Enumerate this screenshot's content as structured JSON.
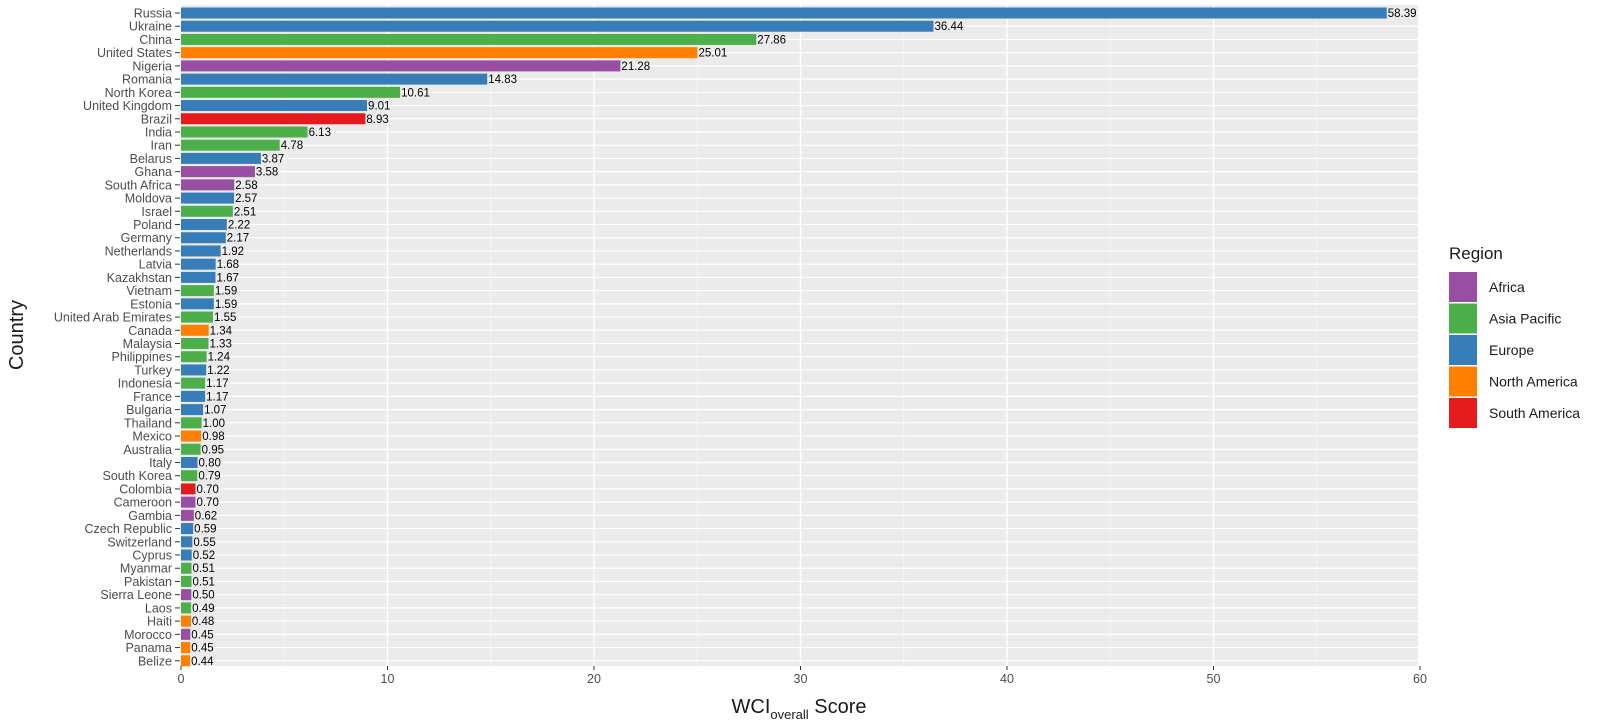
{
  "chart_data": {
    "type": "bar",
    "orientation": "horizontal",
    "xlabel_main": "WCI",
    "xlabel_sub": "overall",
    "xlabel_tail": " Score",
    "ylabel": "Country",
    "xlim": [
      0,
      60
    ],
    "xticks": [
      0,
      10,
      20,
      30,
      40,
      50,
      60
    ],
    "grid": true,
    "legend": {
      "title": "Region",
      "position": "right",
      "entries": [
        {
          "name": "Africa",
          "color": "#984EA3"
        },
        {
          "name": "Asia Pacific",
          "color": "#4DAF4A"
        },
        {
          "name": "Europe",
          "color": "#377EB8"
        },
        {
          "name": "North America",
          "color": "#FF7F00"
        },
        {
          "name": "South America",
          "color": "#E41A1C"
        }
      ]
    },
    "bars": [
      {
        "country": "Russia",
        "value": 58.39,
        "label": "58.39",
        "region": "Europe"
      },
      {
        "country": "Ukraine",
        "value": 36.44,
        "label": "36.44",
        "region": "Europe"
      },
      {
        "country": "China",
        "value": 27.86,
        "label": "27.86",
        "region": "Asia Pacific"
      },
      {
        "country": "United States",
        "value": 25.01,
        "label": "25.01",
        "region": "North America"
      },
      {
        "country": "Nigeria",
        "value": 21.28,
        "label": "21.28",
        "region": "Africa"
      },
      {
        "country": "Romania",
        "value": 14.83,
        "label": "14.83",
        "region": "Europe"
      },
      {
        "country": "North Korea",
        "value": 10.61,
        "label": "10.61",
        "region": "Asia Pacific"
      },
      {
        "country": "United Kingdom",
        "value": 9.01,
        "label": "9.01",
        "region": "Europe"
      },
      {
        "country": "Brazil",
        "value": 8.93,
        "label": "8.93",
        "region": "South America"
      },
      {
        "country": "India",
        "value": 6.13,
        "label": "6.13",
        "region": "Asia Pacific"
      },
      {
        "country": "Iran",
        "value": 4.78,
        "label": "4.78",
        "region": "Asia Pacific"
      },
      {
        "country": "Belarus",
        "value": 3.87,
        "label": "3.87",
        "region": "Europe"
      },
      {
        "country": "Ghana",
        "value": 3.58,
        "label": "3.58",
        "region": "Africa"
      },
      {
        "country": "South Africa",
        "value": 2.58,
        "label": "2.58",
        "region": "Africa"
      },
      {
        "country": "Moldova",
        "value": 2.57,
        "label": "2.57",
        "region": "Europe"
      },
      {
        "country": "Israel",
        "value": 2.51,
        "label": "2.51",
        "region": "Asia Pacific"
      },
      {
        "country": "Poland",
        "value": 2.22,
        "label": "2.22",
        "region": "Europe"
      },
      {
        "country": "Germany",
        "value": 2.17,
        "label": "2.17",
        "region": "Europe"
      },
      {
        "country": "Netherlands",
        "value": 1.92,
        "label": "1.92",
        "region": "Europe"
      },
      {
        "country": "Latvia",
        "value": 1.68,
        "label": "1.68",
        "region": "Europe"
      },
      {
        "country": "Kazakhstan",
        "value": 1.67,
        "label": "1.67",
        "region": "Europe"
      },
      {
        "country": "Vietnam",
        "value": 1.59,
        "label": "1.59",
        "region": "Asia Pacific"
      },
      {
        "country": "Estonia",
        "value": 1.59,
        "label": "1.59",
        "region": "Europe"
      },
      {
        "country": "United Arab Emirates",
        "value": 1.55,
        "label": "1.55",
        "region": "Asia Pacific"
      },
      {
        "country": "Canada",
        "value": 1.34,
        "label": "1.34",
        "region": "North America"
      },
      {
        "country": "Malaysia",
        "value": 1.33,
        "label": "1.33",
        "region": "Asia Pacific"
      },
      {
        "country": "Philippines",
        "value": 1.24,
        "label": "1.24",
        "region": "Asia Pacific"
      },
      {
        "country": "Turkey",
        "value": 1.22,
        "label": "1.22",
        "region": "Europe"
      },
      {
        "country": "Indonesia",
        "value": 1.17,
        "label": "1.17",
        "region": "Asia Pacific"
      },
      {
        "country": "France",
        "value": 1.17,
        "label": "1.17",
        "region": "Europe"
      },
      {
        "country": "Bulgaria",
        "value": 1.07,
        "label": "1.07",
        "region": "Europe"
      },
      {
        "country": "Thailand",
        "value": 1.0,
        "label": "1.00",
        "region": "Asia Pacific"
      },
      {
        "country": "Mexico",
        "value": 0.98,
        "label": "0.98",
        "region": "North America"
      },
      {
        "country": "Australia",
        "value": 0.95,
        "label": "0.95",
        "region": "Asia Pacific"
      },
      {
        "country": "Italy",
        "value": 0.8,
        "label": "0.80",
        "region": "Europe"
      },
      {
        "country": "South Korea",
        "value": 0.79,
        "label": "0.79",
        "region": "Asia Pacific"
      },
      {
        "country": "Colombia",
        "value": 0.7,
        "label": "0.70",
        "region": "South America"
      },
      {
        "country": "Cameroon",
        "value": 0.7,
        "label": "0.70",
        "region": "Africa"
      },
      {
        "country": "Gambia",
        "value": 0.62,
        "label": "0.62",
        "region": "Africa"
      },
      {
        "country": "Czech Republic",
        "value": 0.59,
        "label": "0.59",
        "region": "Europe"
      },
      {
        "country": "Switzerland",
        "value": 0.55,
        "label": "0.55",
        "region": "Europe"
      },
      {
        "country": "Cyprus",
        "value": 0.52,
        "label": "0.52",
        "region": "Europe"
      },
      {
        "country": "Myanmar",
        "value": 0.51,
        "label": "0.51",
        "region": "Asia Pacific"
      },
      {
        "country": "Pakistan",
        "value": 0.51,
        "label": "0.51",
        "region": "Asia Pacific"
      },
      {
        "country": "Sierra Leone",
        "value": 0.5,
        "label": "0.50",
        "region": "Africa"
      },
      {
        "country": "Laos",
        "value": 0.49,
        "label": "0.49",
        "region": "Asia Pacific"
      },
      {
        "country": "Haiti",
        "value": 0.48,
        "label": "0.48",
        "region": "North America"
      },
      {
        "country": "Morocco",
        "value": 0.45,
        "label": "0.45",
        "region": "Africa"
      },
      {
        "country": "Panama",
        "value": 0.45,
        "label": "0.45",
        "region": "North America"
      },
      {
        "country": "Belize",
        "value": 0.44,
        "label": "0.44",
        "region": "North America"
      }
    ]
  }
}
